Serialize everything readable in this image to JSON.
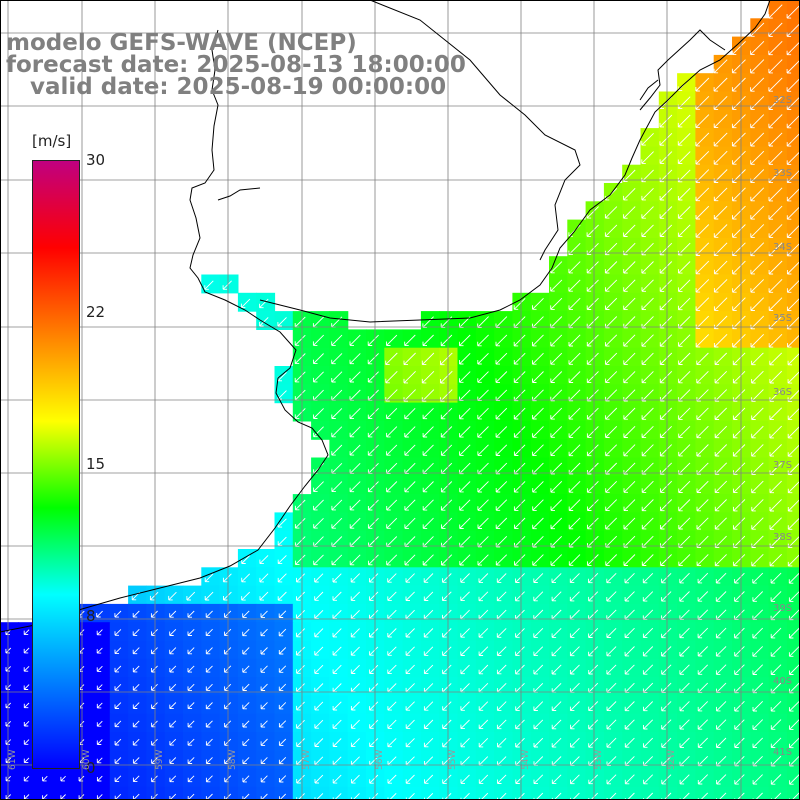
{
  "title": {
    "line1": "modelo GEFS-WAVE (NCEP)",
    "line2": "forecast date: 2025-08-13 18:00:00",
    "line3": "   valid date: 2025-08-19 00:00:00"
  },
  "colorbar": {
    "units": "[m/s]",
    "ticks": [
      "30",
      "22",
      "15",
      "8",
      "0"
    ],
    "colors": [
      "#0000ff",
      "#0080ff",
      "#00ffff",
      "#00ff00",
      "#ffff00",
      "#ff8000",
      "#ff0000",
      "#c00080"
    ]
  },
  "lat_labels": [
    "32S",
    "33S",
    "34S",
    "35S",
    "36S",
    "37S",
    "38S",
    "39S",
    "40S",
    "41S"
  ],
  "lon_labels": [
    "61W",
    "60W",
    "59W",
    "58W",
    "57W",
    "56W",
    "55W",
    "54W",
    "53W",
    "52W"
  ],
  "wind_direction": "toward southwest",
  "colors": {
    "land": "#ffffff",
    "coastline": "#000000",
    "grid": "#808080",
    "arrow": "#ffffff",
    "title": "#808080"
  }
}
